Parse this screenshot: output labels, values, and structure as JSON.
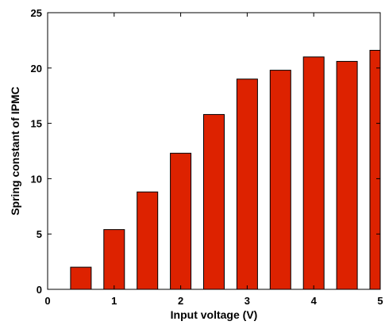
{
  "chart_data": {
    "type": "bar",
    "x": [
      0.5,
      1.0,
      1.5,
      2.0,
      2.5,
      3.0,
      3.5,
      4.0,
      4.5,
      5.0
    ],
    "values": [
      2.0,
      5.4,
      8.8,
      12.3,
      15.8,
      19.0,
      19.8,
      21.0,
      20.6,
      21.6
    ],
    "xlabel": "Input voltage (V)",
    "ylabel": "Spring constant of IPMC",
    "xlim": [
      0,
      5
    ],
    "ylim": [
      0,
      25
    ],
    "xticks": [
      "0",
      "1",
      "2",
      "3",
      "4",
      "5"
    ],
    "yticks": [
      "0",
      "5",
      "10",
      "15",
      "20",
      "25"
    ],
    "bar_color": "#dd2200",
    "grid": false
  }
}
